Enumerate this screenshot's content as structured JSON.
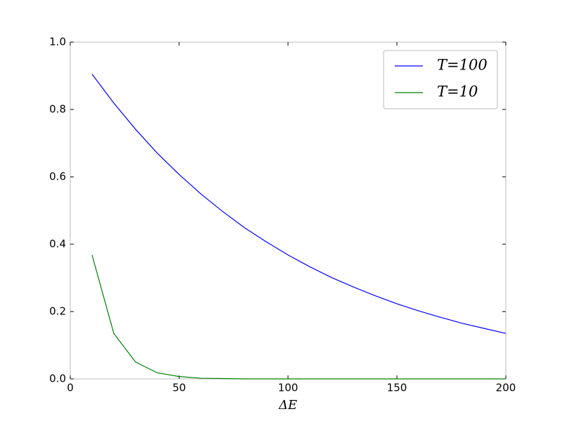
{
  "chart_data": {
    "type": "line",
    "x_label": "ΔE",
    "x": [
      10,
      20,
      30,
      40,
      50,
      60,
      70,
      80,
      90,
      100,
      110,
      120,
      130,
      140,
      150,
      160,
      170,
      180,
      190,
      200
    ],
    "series": [
      {
        "name": "T=100",
        "color": "#0000ff",
        "values": [
          0.905,
          0.819,
          0.741,
          0.67,
          0.607,
          0.549,
          0.497,
          0.449,
          0.407,
          0.368,
          0.333,
          0.301,
          0.273,
          0.247,
          0.223,
          0.202,
          0.183,
          0.165,
          0.15,
          0.135
        ]
      },
      {
        "name": "T=10",
        "color": "#008000",
        "values": [
          0.368,
          0.135,
          0.05,
          0.018,
          0.007,
          0.002,
          0.001,
          0,
          0,
          0,
          0,
          0,
          0,
          0,
          0,
          0,
          0,
          0,
          0,
          0
        ]
      }
    ],
    "xlim": [
      0,
      200
    ],
    "xticks": [
      0,
      50,
      100,
      150,
      200
    ],
    "ylim": [
      0,
      1
    ],
    "yticks": [
      {
        "value": 0,
        "label": "0.0"
      },
      0.2,
      0.4,
      0.6,
      0.8,
      {
        "value": 1,
        "label": "1.0"
      }
    ],
    "legend": "upper right"
  }
}
